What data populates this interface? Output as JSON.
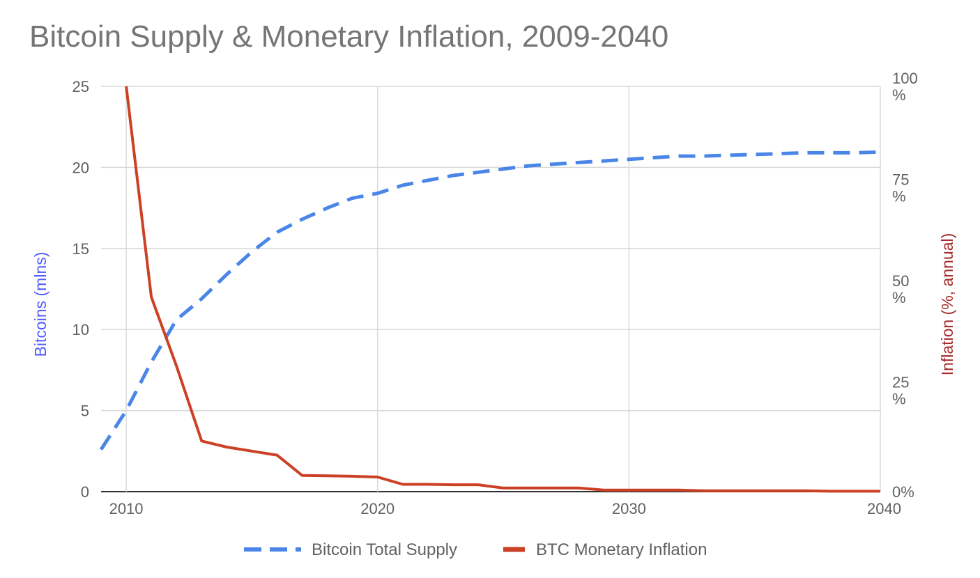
{
  "chart_data": {
    "type": "line",
    "title": "Bitcoin Supply & Monetary Inflation, 2009-2040",
    "xlabel": "",
    "x_ticks": [
      "2010",
      "2020",
      "2030",
      "2040"
    ],
    "xlim": [
      2009,
      2040
    ],
    "left_axis": {
      "label": "Bitcoins (mlns)",
      "ylim": [
        0,
        25
      ],
      "ticks": [
        "0",
        "5",
        "10",
        "15",
        "20",
        "25"
      ],
      "color": "#4f5bff"
    },
    "right_axis": {
      "label": "Inflation (%, annual)",
      "ylim": [
        0,
        100
      ],
      "ticks": [
        {
          "value": 0,
          "line1": "0%",
          "line2": ""
        },
        {
          "value": 25,
          "line1": "25",
          "line2": "%"
        },
        {
          "value": 50,
          "line1": "50",
          "line2": "%"
        },
        {
          "value": 75,
          "line1": "75",
          "line2": "%"
        },
        {
          "value": 100,
          "line1": "100",
          "line2": "%"
        }
      ],
      "color": "#a52a2a"
    },
    "grid": true,
    "legend_position": "bottom",
    "series": [
      {
        "name": "Bitcoin Total Supply",
        "axis": "left",
        "style": "dashed",
        "color": "#4a86e8",
        "x": [
          2009,
          2010,
          2011,
          2012,
          2013,
          2014,
          2015,
          2016,
          2017,
          2018,
          2019,
          2020,
          2021,
          2022,
          2023,
          2024,
          2025,
          2026,
          2027,
          2028,
          2029,
          2030,
          2031,
          2032,
          2033,
          2034,
          2035,
          2036,
          2037,
          2038,
          2039,
          2040
        ],
        "values": [
          2.6,
          5.0,
          8.0,
          10.6,
          11.9,
          13.4,
          14.8,
          16.0,
          16.8,
          17.5,
          18.1,
          18.4,
          18.9,
          19.2,
          19.5,
          19.7,
          19.9,
          20.1,
          20.2,
          20.3,
          20.4,
          20.5,
          20.6,
          20.7,
          20.7,
          20.75,
          20.8,
          20.85,
          20.9,
          20.9,
          20.9,
          20.95
        ]
      },
      {
        "name": "BTC Monetary Inflation",
        "axis": "right",
        "style": "solid",
        "color": "#cc4125",
        "x": [
          2010,
          2011,
          2012,
          2013,
          2014,
          2015,
          2016,
          2017,
          2018,
          2019,
          2020,
          2021,
          2022,
          2023,
          2024,
          2025,
          2026,
          2027,
          2028,
          2029,
          2030,
          2031,
          2032,
          2033,
          2034,
          2035,
          2036,
          2037,
          2038,
          2039,
          2040
        ],
        "values": [
          100,
          48,
          31,
          12.5,
          11,
          10,
          9,
          4,
          3.9,
          3.8,
          3.6,
          1.8,
          1.8,
          1.7,
          1.7,
          0.9,
          0.9,
          0.9,
          0.9,
          0.4,
          0.4,
          0.4,
          0.4,
          0.2,
          0.2,
          0.2,
          0.2,
          0.2,
          0.1,
          0.1,
          0.1
        ]
      }
    ]
  }
}
